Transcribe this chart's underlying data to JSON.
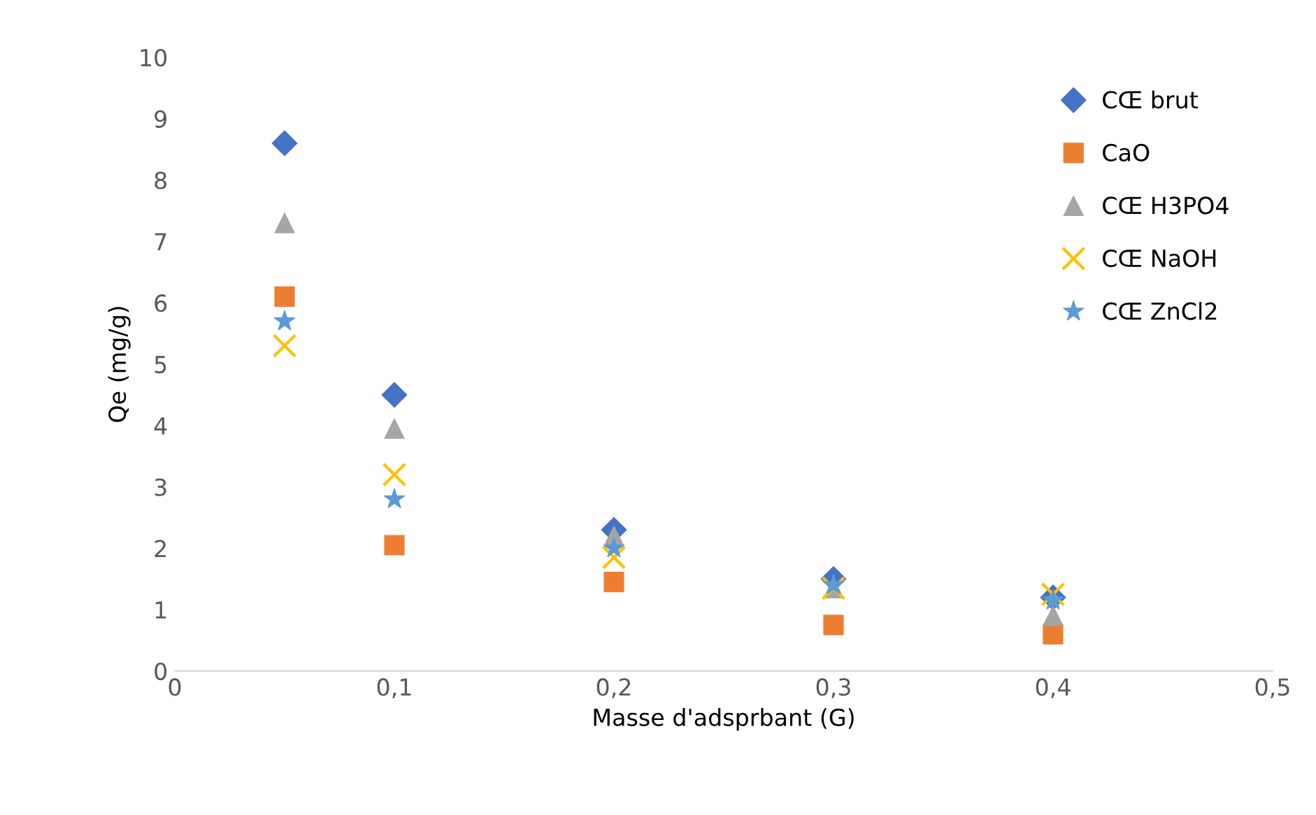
{
  "chart_data": {
    "type": "scatter",
    "xlabel": "Masse d'adsprbant (G)",
    "ylabel": "Qe (mg/g)",
    "x": [
      0.05,
      0.1,
      0.2,
      0.3,
      0.4
    ],
    "series": [
      {
        "name": "CŒ brut",
        "color": "#4472c4",
        "marker": "diamond",
        "values": [
          8.6,
          4.5,
          2.3,
          1.5,
          1.2
        ]
      },
      {
        "name": "CaO",
        "color": "#ed7d31",
        "marker": "square",
        "values": [
          6.1,
          2.05,
          1.45,
          0.75,
          0.6
        ]
      },
      {
        "name": "CŒ H3PO4",
        "color": "#a5a5a5",
        "marker": "triangle",
        "values": [
          7.3,
          3.95,
          2.2,
          1.35,
          0.9
        ]
      },
      {
        "name": "CŒ NaOH",
        "color": "#ffc000",
        "marker": "cross",
        "values": [
          5.3,
          3.2,
          1.85,
          1.35,
          1.25
        ]
      },
      {
        "name": "CŒ ZnCl2",
        "color": "#5b9bd5",
        "marker": "star",
        "values": [
          5.7,
          2.8,
          2.0,
          1.4,
          1.15
        ]
      }
    ],
    "xlim": [
      0,
      0.5
    ],
    "xticks": [
      0,
      {
        "value": 0.1,
        "label": "0,1"
      },
      {
        "value": 0.2,
        "label": "0,2"
      },
      {
        "value": 0.3,
        "label": "0,3"
      },
      {
        "value": 0.4,
        "label": "0,4"
      },
      {
        "value": 0.5,
        "label": "0,5"
      }
    ],
    "ylim": [
      0,
      10
    ],
    "yticks": [
      0,
      1,
      2,
      3,
      4,
      5,
      6,
      7,
      8,
      9,
      10
    ],
    "grid": false,
    "legend": "top right"
  }
}
